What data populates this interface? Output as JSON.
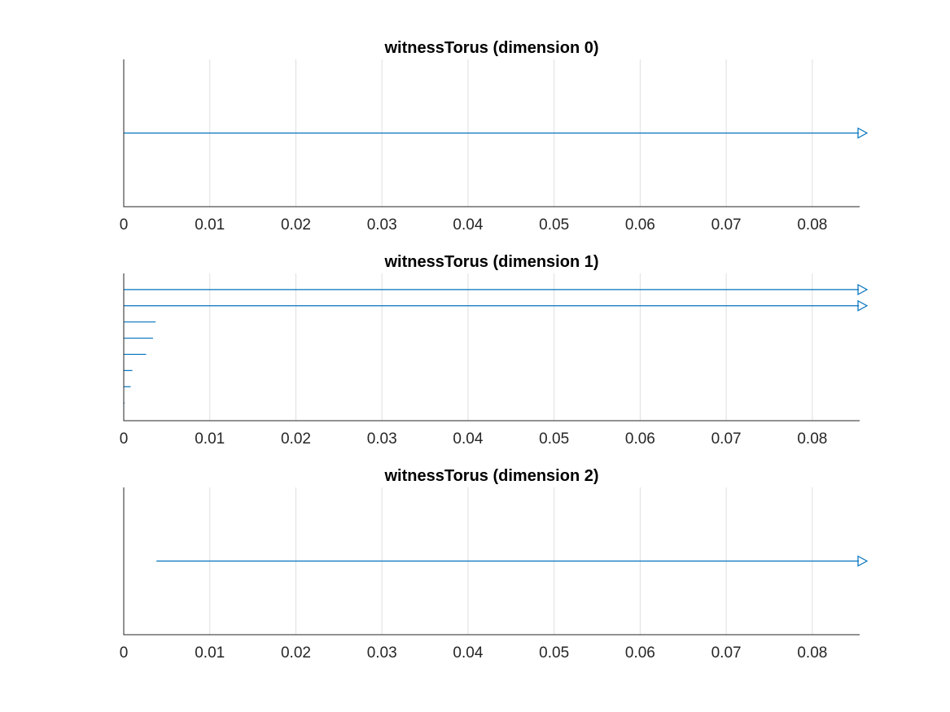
{
  "chart_data": [
    {
      "type": "barcode",
      "title": "witnessTorus (dimension 0)",
      "xlabel": "",
      "ylabel": "",
      "xlim": [
        0,
        0.0855
      ],
      "xticks": [
        "0",
        "0.01",
        "0.02",
        "0.03",
        "0.04",
        "0.05",
        "0.06",
        "0.07",
        "0.08"
      ],
      "grid": "x",
      "color": "#0072bd",
      "bars": [
        {
          "birth": 0,
          "death": null,
          "infinite": true
        }
      ]
    },
    {
      "type": "barcode",
      "title": "witnessTorus (dimension 1)",
      "xlabel": "",
      "ylabel": "",
      "xlim": [
        0,
        0.0855
      ],
      "xticks": [
        "0",
        "0.01",
        "0.02",
        "0.03",
        "0.04",
        "0.05",
        "0.06",
        "0.07",
        "0.08"
      ],
      "grid": "x",
      "color": "#0072bd",
      "bars": [
        {
          "birth": 0,
          "death": null,
          "infinite": true
        },
        {
          "birth": 0,
          "death": null,
          "infinite": true
        },
        {
          "birth": 0,
          "death": 0.0037,
          "infinite": false
        },
        {
          "birth": 0,
          "death": 0.0034,
          "infinite": false
        },
        {
          "birth": 0,
          "death": 0.0026,
          "infinite": false
        },
        {
          "birth": 0,
          "death": 0.001,
          "infinite": false
        },
        {
          "birth": 0,
          "death": 0.0008,
          "infinite": false
        },
        {
          "birth": 0,
          "death": 0.0001,
          "infinite": false
        }
      ]
    },
    {
      "type": "barcode",
      "title": "witnessTorus (dimension 2)",
      "xlabel": "",
      "ylabel": "",
      "xlim": [
        0,
        0.0855
      ],
      "xticks": [
        "0",
        "0.01",
        "0.02",
        "0.03",
        "0.04",
        "0.05",
        "0.06",
        "0.07",
        "0.08"
      ],
      "grid": "x",
      "color": "#0072bd",
      "bars": [
        {
          "birth": 0.0038,
          "death": null,
          "infinite": true
        }
      ]
    }
  ]
}
